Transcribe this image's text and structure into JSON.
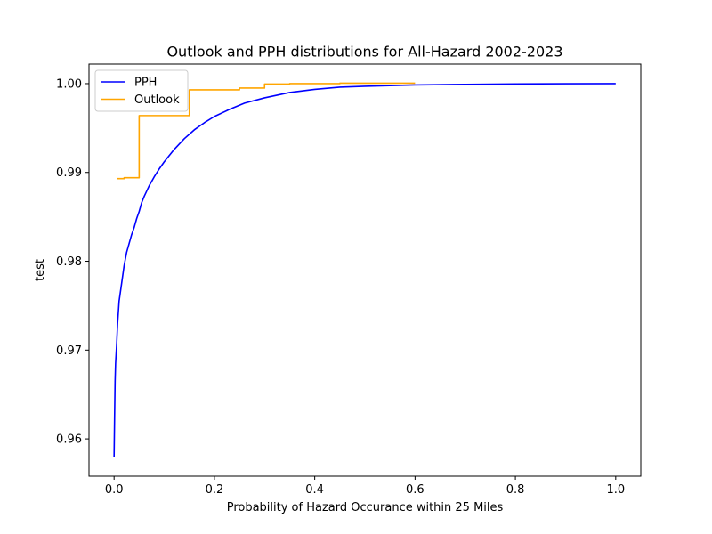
{
  "chart_data": {
    "type": "line",
    "title": "Outlook and PPH distributions for All-Hazard 2002-2023",
    "xlabel": "Probability of Hazard Occurance within 25 Miles",
    "ylabel": "test",
    "xlim": [
      -0.05,
      1.05
    ],
    "ylim": [
      0.9558,
      1.0022
    ],
    "x_ticks": [
      0.0,
      0.2,
      0.4,
      0.6,
      0.8,
      1.0
    ],
    "x_tick_labels": [
      "0.0",
      "0.2",
      "0.4",
      "0.6",
      "0.8",
      "1.0"
    ],
    "y_ticks": [
      0.96,
      0.97,
      0.98,
      0.99,
      1.0
    ],
    "y_tick_labels": [
      "0.96",
      "0.97",
      "0.98",
      "0.99",
      "1.00"
    ],
    "grid": false,
    "legend_position": "top-left",
    "series": [
      {
        "name": "PPH",
        "color": "#0000ff",
        "x": [
          0.0,
          0.001,
          0.002,
          0.003,
          0.005,
          0.007,
          0.01,
          0.015,
          0.02,
          0.025,
          0.03,
          0.035,
          0.04,
          0.045,
          0.05,
          0.055,
          0.06,
          0.07,
          0.08,
          0.09,
          0.1,
          0.12,
          0.14,
          0.16,
          0.18,
          0.2,
          0.23,
          0.26,
          0.3,
          0.35,
          0.4,
          0.45,
          0.5,
          0.6,
          0.7,
          0.8,
          0.9,
          1.0
        ],
        "y": [
          0.958,
          0.9625,
          0.9665,
          0.9685,
          0.9705,
          0.973,
          0.9755,
          0.9775,
          0.9795,
          0.981,
          0.982,
          0.983,
          0.9838,
          0.9848,
          0.9856,
          0.9866,
          0.9873,
          0.9885,
          0.9895,
          0.9904,
          0.9912,
          0.9926,
          0.9938,
          0.9948,
          0.9956,
          0.9963,
          0.9971,
          0.9978,
          0.9984,
          0.999,
          0.99935,
          0.9996,
          0.9997,
          0.99985,
          0.99992,
          0.99996,
          0.99999,
          1.0
        ]
      },
      {
        "name": "Outlook",
        "color": "#ffa500",
        "x": [
          0.005,
          0.02,
          0.02,
          0.05,
          0.05,
          0.15,
          0.15,
          0.25,
          0.25,
          0.3,
          0.3,
          0.35,
          0.35,
          0.45,
          0.45,
          0.6
        ],
        "y": [
          0.9893,
          0.9893,
          0.9894,
          0.9894,
          0.9964,
          0.9964,
          0.9993,
          0.9993,
          0.9995,
          0.9995,
          0.99995,
          0.99995,
          1.0,
          1.0,
          1.00005,
          1.00005
        ]
      }
    ]
  }
}
